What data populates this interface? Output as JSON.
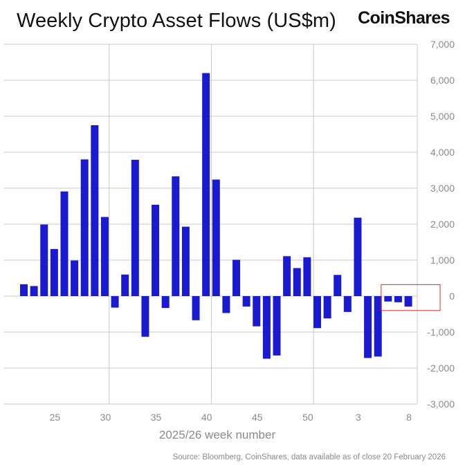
{
  "header": {
    "title": "Weekly Crypto Asset Flows (US$m)",
    "brand": "CoinShares"
  },
  "footer": {
    "source": "Source: Bloomberg, CoinShares, data available as of close 20 February 2026"
  },
  "colors": {
    "bar": "#1a1ad0",
    "grid": "#c8c8c8",
    "highlight_box": "#d32f2f"
  },
  "chart_data": {
    "type": "bar",
    "title": "Weekly Crypto Asset Flows (US$m)",
    "xlabel": "2025/26 week number",
    "ylabel": "",
    "ylim": [
      -3000,
      7000
    ],
    "y_ticks": [
      7000,
      6000,
      5000,
      4000,
      3000,
      2000,
      1000,
      0,
      -1000,
      -2000,
      -3000
    ],
    "y_tick_labels": [
      "7,000",
      "6,000",
      "5,000",
      "4,000",
      "3,000",
      "2,000",
      "1,000",
      "0",
      "-1,000",
      "-2,000",
      "-3,000"
    ],
    "x_tick_labels": [
      "25",
      "30",
      "35",
      "40",
      "45",
      "50",
      "3",
      "8"
    ],
    "categories": [
      "22",
      "23",
      "24",
      "25",
      "26",
      "27",
      "28",
      "29",
      "30",
      "31",
      "32",
      "33",
      "34",
      "35",
      "36",
      "37",
      "38",
      "39",
      "40",
      "41",
      "42",
      "43",
      "44",
      "45",
      "46",
      "47",
      "48",
      "49",
      "50",
      "51",
      "52",
      "1",
      "2",
      "3",
      "4",
      "5",
      "6",
      "7",
      "8"
    ],
    "values": [
      330,
      280,
      1990,
      1310,
      2910,
      990,
      3800,
      4750,
      2200,
      -320,
      600,
      3790,
      -1130,
      2540,
      -330,
      3330,
      1930,
      -670,
      6200,
      3240,
      -470,
      1010,
      -290,
      -840,
      -1740,
      -1650,
      1110,
      780,
      1080,
      -890,
      -620,
      590,
      -440,
      2180,
      -1720,
      -1680,
      -150,
      -170,
      -290
    ],
    "annotation": "highlight box around final three weeks"
  }
}
